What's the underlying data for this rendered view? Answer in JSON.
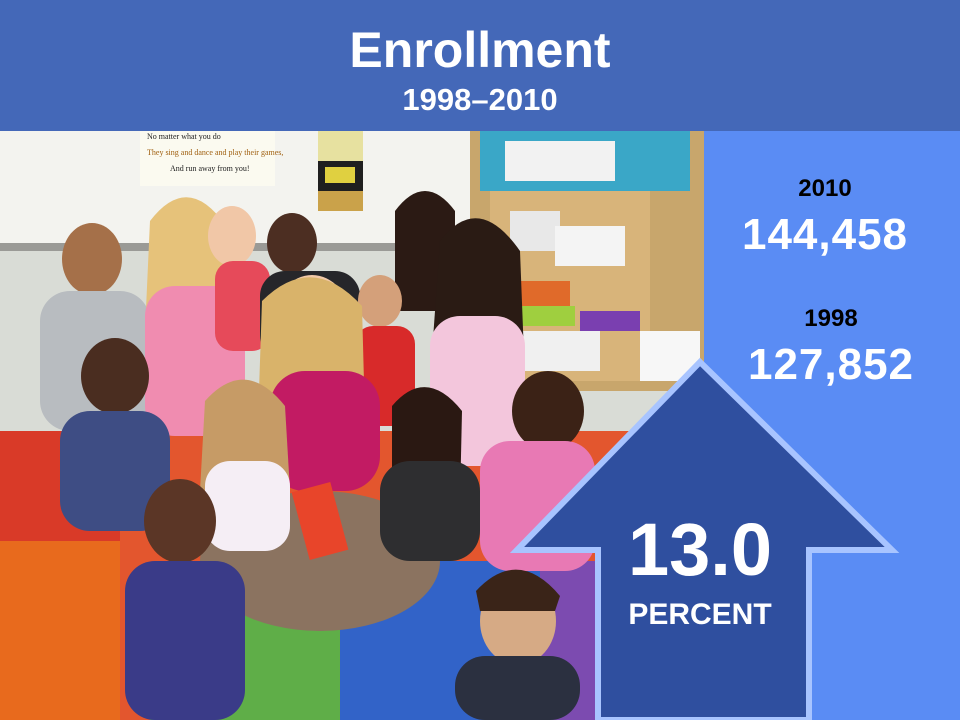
{
  "header": {
    "title": "Enrollment",
    "subtitle": "1998–2010"
  },
  "stats": {
    "current": {
      "year": "2010",
      "value": "144,458"
    },
    "previous": {
      "year": "1998",
      "value": "127,852"
    }
  },
  "change": {
    "value": "13.0",
    "unit": "PERCENT"
  },
  "photo": {
    "poster_lines": [
      "No matter what you do",
      "They sing and dance and play their games,",
      "And run away from you!"
    ]
  },
  "colors": {
    "header": "#4468b8",
    "panel": "#5a8cf4",
    "arrow_fill": "#2f4f9f",
    "arrow_outline": "#a8c4ff"
  },
  "icons": [
    "up-arrow"
  ]
}
